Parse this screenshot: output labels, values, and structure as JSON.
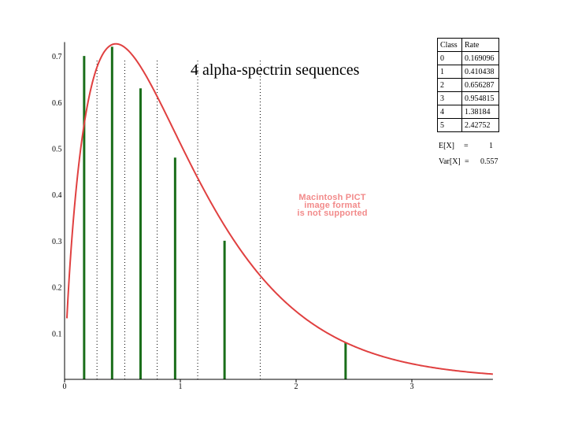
{
  "title": "4 alpha-spectrin sequences",
  "watermark": [
    "Macintosh PICT",
    "image format",
    "is not supported"
  ],
  "table": {
    "headers": [
      "Class",
      "Rate"
    ],
    "rows": [
      [
        "0",
        "0.169096"
      ],
      [
        "1",
        "0.410438"
      ],
      [
        "2",
        "0.656287"
      ],
      [
        "3",
        "0.954815"
      ],
      [
        "4",
        "1.38184"
      ],
      [
        "5",
        "2.42752"
      ]
    ]
  },
  "stats": [
    {
      "label": "E[X]",
      "eq": "=",
      "value": "1"
    },
    {
      "label": "Var[X]",
      "eq": "=",
      "value": "0.557"
    }
  ],
  "colors": {
    "curve": "#e04040",
    "bars": "#1a6e1a",
    "axis": "#000000"
  },
  "chart_data": {
    "type": "bar",
    "title": "4 alpha-spectrin sequences",
    "xlim": [
      0,
      3.7
    ],
    "ylim": [
      0,
      0.73
    ],
    "x_ticks": [
      "0",
      "1",
      "2",
      "3"
    ],
    "y_ticks": [
      "0.1",
      "0.2",
      "0.3",
      "0.4",
      "0.5",
      "0.6",
      "0.7"
    ],
    "bars": {
      "x": [
        0.169096,
        0.410438,
        0.656287,
        0.954815,
        1.38184,
        2.42752
      ],
      "y": [
        0.7,
        0.72,
        0.63,
        0.48,
        0.3,
        0.08
      ]
    },
    "category_boundaries": [
      0.28,
      0.52,
      0.8,
      1.15,
      1.69
    ],
    "curve": {
      "type": "gamma-density",
      "shape": 1.795,
      "mean": 1
    }
  }
}
